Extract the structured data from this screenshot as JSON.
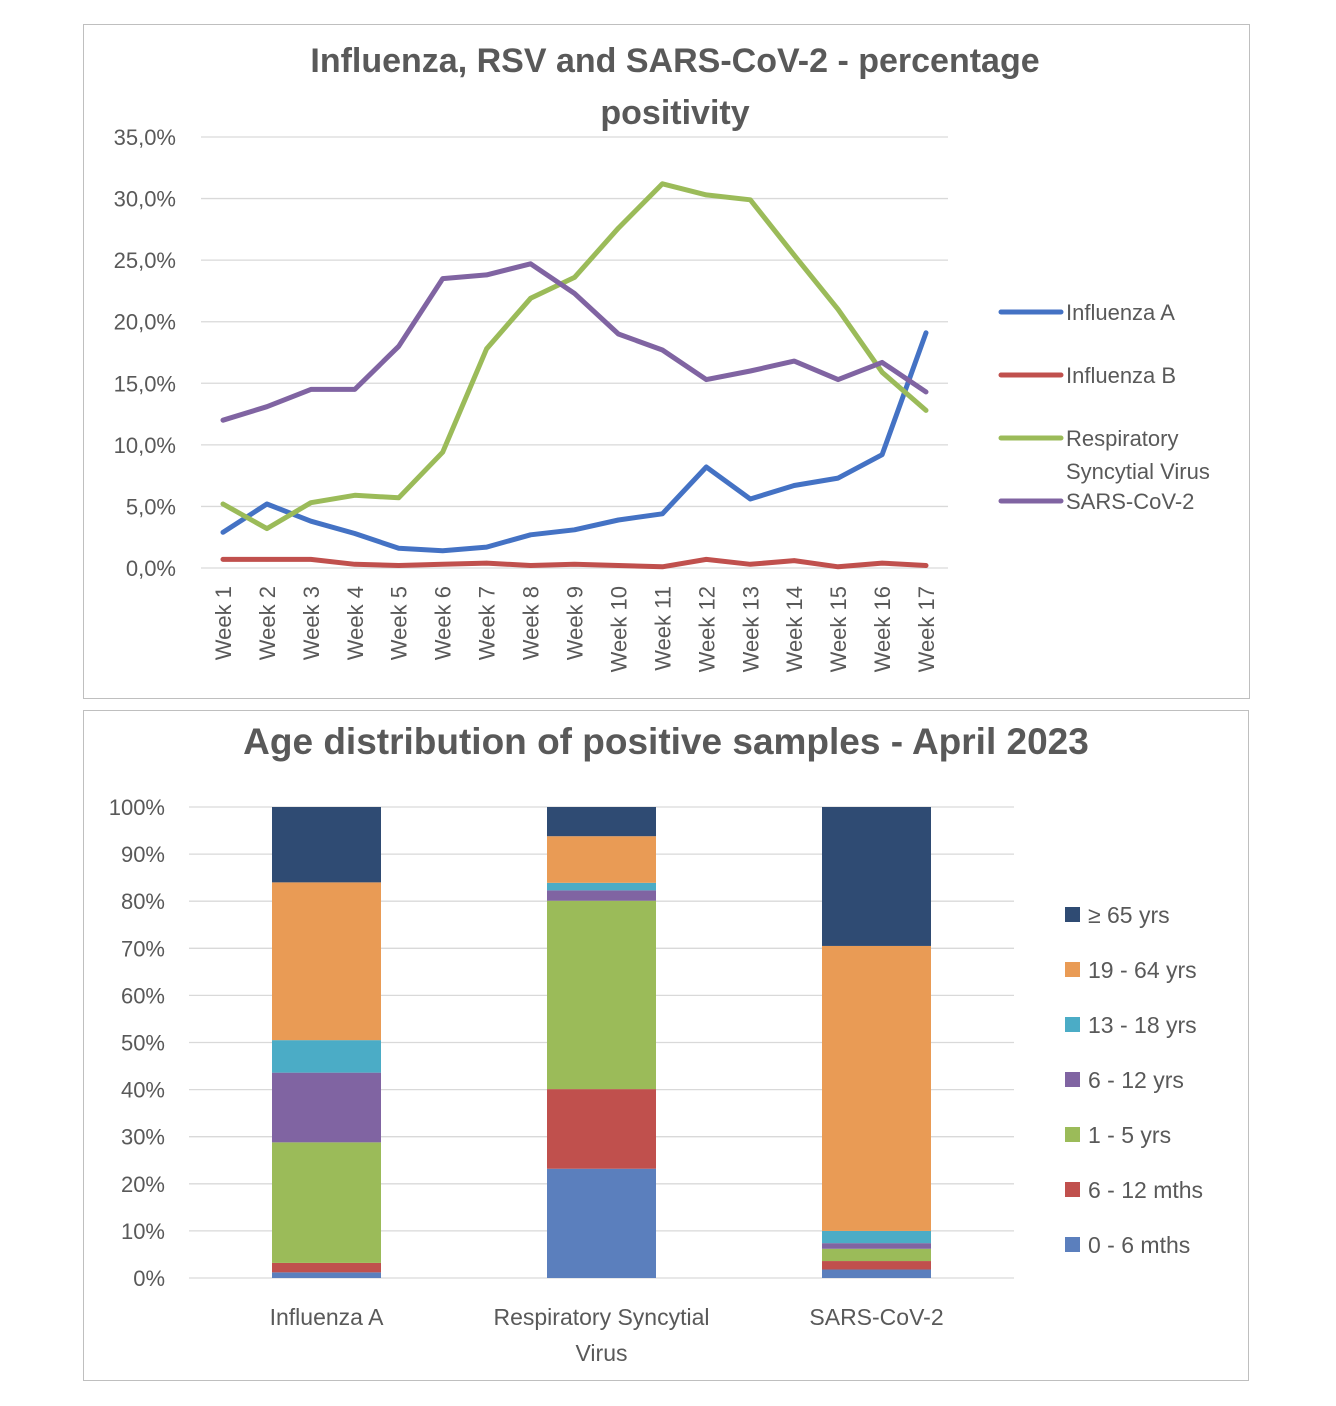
{
  "chart_data": [
    {
      "type": "line",
      "title_lines": [
        "Influenza, RSV and SARS-CoV-2 - percentage",
        "positivity"
      ],
      "xlabel": "",
      "ylabel": "",
      "x": [
        "Week 1",
        "Week 2",
        "Week 3",
        "Week 4",
        "Week 5",
        "Week 6",
        "Week 7",
        "Week 8",
        "Week 9",
        "Week 10",
        "Week 11",
        "Week 12",
        "Week 13",
        "Week 14",
        "Week 15",
        "Week 16",
        "Week 17"
      ],
      "ylim": [
        0,
        35
      ],
      "y_ticks": [
        "0,0%",
        "5,0%",
        "10,0%",
        "15,0%",
        "20,0%",
        "25,0%",
        "30,0%",
        "35,0%"
      ],
      "grid": true,
      "legend_position": "right",
      "series": [
        {
          "name": "Influenza A",
          "color": "#4472c4",
          "values": [
            2.9,
            5.2,
            3.8,
            2.8,
            1.6,
            1.4,
            1.7,
            2.7,
            3.1,
            3.9,
            4.4,
            8.2,
            5.6,
            6.7,
            7.3,
            9.2,
            19.1
          ]
        },
        {
          "name": "Influenza B",
          "color": "#c0504d",
          "values": [
            0.7,
            0.7,
            0.7,
            0.3,
            0.2,
            0.3,
            0.4,
            0.2,
            0.3,
            0.2,
            0.1,
            0.7,
            0.3,
            0.6,
            0.1,
            0.4,
            0.2
          ]
        },
        {
          "name_lines": [
            "Respiratory",
            "Syncytial Virus"
          ],
          "color": "#9bbb59",
          "values": [
            5.2,
            3.2,
            5.3,
            5.9,
            5.7,
            9.4,
            17.8,
            21.9,
            23.6,
            27.6,
            31.2,
            30.3,
            29.9,
            25.4,
            21.0,
            15.9,
            12.8
          ]
        },
        {
          "name": "SARS-CoV-2",
          "color": "#8064a2",
          "values": [
            12.0,
            13.1,
            14.5,
            14.5,
            18.0,
            23.5,
            23.8,
            24.7,
            22.3,
            19.0,
            17.7,
            15.3,
            16.0,
            16.8,
            15.3,
            16.7,
            14.3
          ]
        }
      ]
    },
    {
      "type": "bar",
      "stacked": true,
      "title": "Age distribution of positive samples - April 2023",
      "categories": [
        [
          "Influenza A"
        ],
        [
          "Respiratory Syncytial",
          "Virus"
        ],
        [
          "SARS-CoV-2"
        ]
      ],
      "ylim": [
        0,
        100
      ],
      "y_ticks": [
        "0%",
        "10%",
        "20%",
        "30%",
        "40%",
        "50%",
        "60%",
        "70%",
        "80%",
        "90%",
        "100%"
      ],
      "grid": true,
      "legend_position": "right",
      "series": [
        {
          "name": "0 - 6 mths",
          "color": "#5b7fbd",
          "values": [
            1.2,
            23.2,
            1.8
          ]
        },
        {
          "name": "6 - 12 mths",
          "color": "#c0504d",
          "values": [
            2.0,
            16.9,
            1.8
          ]
        },
        {
          "name": "1 - 5 yrs",
          "color": "#9bbb59",
          "values": [
            25.6,
            40.0,
            2.6
          ]
        },
        {
          "name": "6 - 12 yrs",
          "color": "#8064a2",
          "values": [
            14.8,
            2.2,
            1.2
          ]
        },
        {
          "name": "13 - 18 yrs",
          "color": "#4bacc6",
          "values": [
            6.9,
            1.6,
            2.6
          ]
        },
        {
          "name": "19 - 64 yrs",
          "color": "#e99b55",
          "values": [
            33.5,
            9.9,
            60.5
          ]
        },
        {
          "name": "≥ 65 yrs",
          "color": "#2f4b73",
          "values": [
            16.0,
            6.2,
            29.5
          ]
        }
      ]
    }
  ]
}
